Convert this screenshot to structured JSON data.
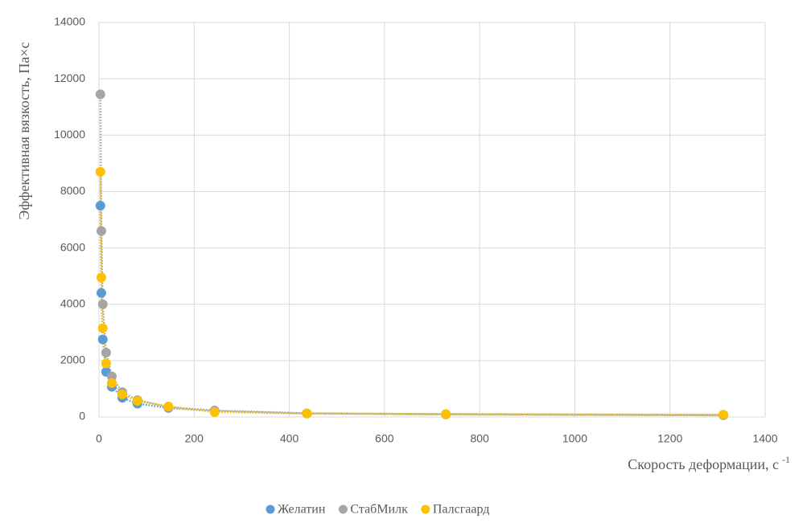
{
  "chart_data": {
    "type": "scatter",
    "x_label": "Скорость деформации, с",
    "x_label_superscript": "-1",
    "y_label": "Эффективная вязкость, Па×с",
    "xlim": [
      0,
      1400
    ],
    "xticks": [
      0,
      200,
      400,
      600,
      800,
      1000,
      1200,
      1400
    ],
    "ylim": [
      0,
      14000
    ],
    "yticks": [
      0,
      2000,
      4000,
      6000,
      8000,
      10000,
      12000,
      14000
    ],
    "grid": true,
    "legend": "bottom",
    "trendline": "dotted",
    "x": [
      3,
      5,
      8,
      15,
      27,
      49,
      81,
      146,
      243,
      437,
      729,
      1312
    ],
    "series": [
      {
        "name": "Желатин",
        "color": "#5b9bd5",
        "values": [
          7500,
          4400,
          2750,
          1600,
          1070,
          680,
          470,
          320,
          200,
          120,
          90,
          60
        ]
      },
      {
        "name": "СтабМилк",
        "color": "#a5a5a5",
        "values": [
          11450,
          6600,
          4000,
          2280,
          1440,
          880,
          600,
          350,
          230,
          130,
          100,
          70
        ]
      },
      {
        "name": "Палсгаард",
        "color": "#ffc000",
        "values": [
          8700,
          4950,
          3150,
          1900,
          1200,
          800,
          570,
          370,
          170,
          120,
          100,
          80
        ]
      }
    ]
  }
}
